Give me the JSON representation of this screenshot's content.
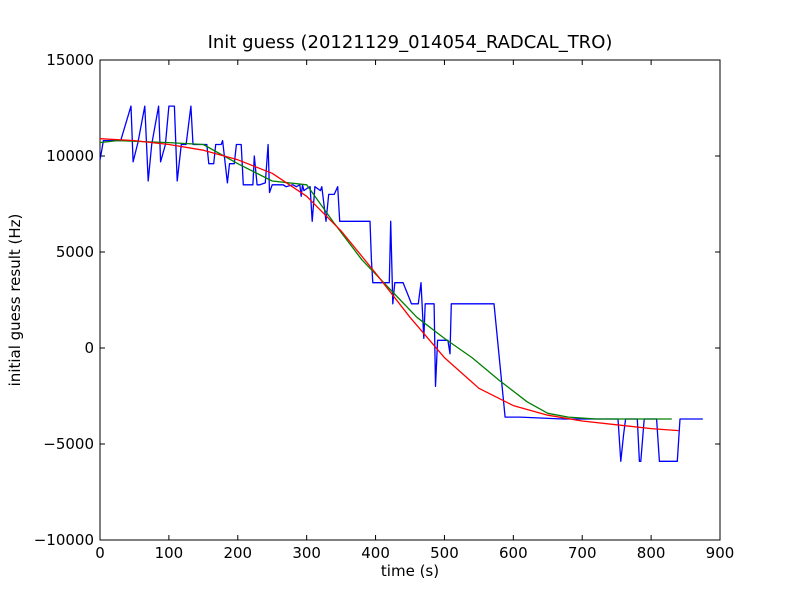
{
  "chart_data": {
    "type": "line",
    "title": "Init guess (20121129_014054_RADCAL_TRO)",
    "xlabel": "time (s)",
    "ylabel": "initial guess result (Hz)",
    "xlim": [
      0,
      900
    ],
    "ylim": [
      -10000,
      15000
    ],
    "xticks": [
      0,
      100,
      200,
      300,
      400,
      500,
      600,
      700,
      800,
      900
    ],
    "yticks": [
      -10000,
      -5000,
      0,
      5000,
      10000,
      15000
    ],
    "xtick_labels": [
      "0",
      "100",
      "200",
      "300",
      "400",
      "500",
      "600",
      "700",
      "800",
      "900"
    ],
    "ytick_labels": [
      "−10000",
      "−5000",
      "0",
      "5000",
      "10000",
      "15000"
    ],
    "grid": false,
    "legend": "none",
    "series": [
      {
        "color": "#0000ff",
        "x": [
          0,
          2,
          5,
          30,
          45,
          48,
          55,
          65,
          70,
          75,
          85,
          88,
          95,
          100,
          108,
          112,
          118,
          125,
          132,
          135,
          155,
          158,
          165,
          168,
          176,
          178,
          185,
          188,
          195,
          198,
          205,
          208,
          222,
          224,
          228,
          232,
          240,
          244,
          246,
          250,
          262,
          266,
          270,
          280,
          285,
          290,
          292,
          294,
          296,
          300,
          305,
          308,
          312,
          320,
          322,
          328,
          332,
          340,
          345,
          348,
          352,
          392,
          394,
          396,
          398,
          400,
          420,
          422,
          425,
          428,
          432,
          438,
          440,
          450,
          452,
          462,
          466,
          470,
          472,
          480,
          485,
          487,
          490,
          492,
          495,
          505,
          508,
          510,
          513,
          568,
          572,
          588,
          605,
          610,
          672,
          690,
          740,
          752,
          756,
          760,
          763,
          766,
          768,
          780,
          783,
          785,
          790,
          792,
          795,
          808,
          812,
          825,
          830,
          838,
          842,
          875
        ],
        "y": [
          9800,
          10200,
          10800,
          10800,
          12600,
          9700,
          10700,
          12600,
          8700,
          10600,
          12600,
          9700,
          10600,
          12600,
          12600,
          8700,
          10600,
          10600,
          12600,
          10600,
          10600,
          9600,
          9600,
          10600,
          10600,
          10800,
          8600,
          9600,
          9600,
          10600,
          10600,
          8500,
          8500,
          10000,
          8500,
          8500,
          8600,
          10600,
          8100,
          8500,
          8500,
          8500,
          8400,
          8500,
          8400,
          8500,
          7900,
          8500,
          8200,
          8300,
          8400,
          6600,
          8400,
          8200,
          8400,
          6600,
          8000,
          8000,
          8400,
          6600,
          6600,
          6600,
          4600,
          3400,
          3400,
          3400,
          3400,
          6600,
          2300,
          3400,
          3400,
          3400,
          3400,
          2500,
          2300,
          2300,
          3400,
          500,
          2300,
          2300,
          2300,
          -2000,
          400,
          400,
          400,
          400,
          -300,
          2300,
          2300,
          2300,
          2300,
          -3600,
          -3600,
          -3600,
          -3700,
          -3700,
          -3700,
          -3700,
          -5900,
          -4500,
          -3700,
          -3700,
          -3700,
          -3700,
          -5900,
          -5900,
          -3700,
          -3700,
          -3700,
          -3700,
          -5900,
          -5900,
          -5900,
          -5900,
          -3700,
          -3700
        ]
      },
      {
        "color": "#008000",
        "x": [
          0,
          25,
          100,
          150,
          200,
          250,
          300,
          340,
          380,
          420,
          460,
          500,
          540,
          580,
          620,
          650,
          680,
          720,
          760,
          800,
          830
        ],
        "y": [
          10700,
          10800,
          10700,
          10600,
          9600,
          8700,
          8500,
          6500,
          4600,
          3100,
          1600,
          500,
          -500,
          -1700,
          -2800,
          -3400,
          -3600,
          -3700,
          -3700,
          -3700,
          -3700
        ]
      },
      {
        "color": "#ff0000",
        "x": [
          0,
          50,
          100,
          150,
          200,
          250,
          300,
          350,
          400,
          450,
          500,
          550,
          600,
          650,
          700,
          750,
          800,
          840
        ],
        "y": [
          10900,
          10800,
          10600,
          10300,
          9800,
          9100,
          7900,
          6100,
          3900,
          1600,
          -500,
          -2100,
          -3000,
          -3500,
          -3800,
          -4000,
          -4200,
          -4300
        ]
      }
    ]
  }
}
